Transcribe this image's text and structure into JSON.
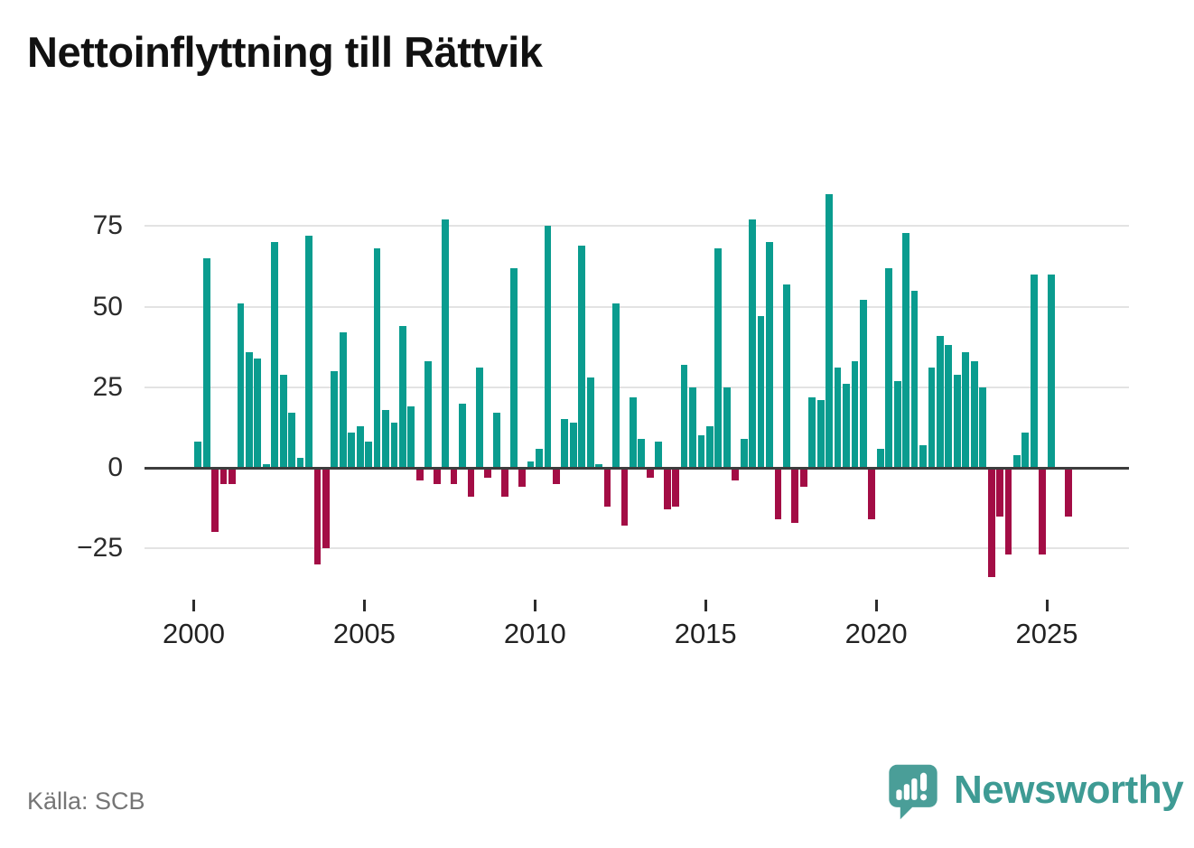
{
  "chart_data": {
    "type": "bar",
    "title": "Nettoinflyttning till Rättvik",
    "source": "Källa: SCB",
    "frequency": "quarterly",
    "x_start_year": 2000,
    "ylim": [
      -40,
      90
    ],
    "yticks": [
      75,
      50,
      25,
      0,
      -25
    ],
    "xticks": [
      2000,
      2005,
      2010,
      2015,
      2020,
      2025
    ],
    "grid": "horizontal",
    "legend": "none",
    "positive_color": "#0a9c8f",
    "negative_color": "#a30d45",
    "series": [
      {
        "year": 2000,
        "values": [
          8,
          65,
          -20,
          -5
        ]
      },
      {
        "year": 2001,
        "values": [
          -5,
          51,
          36,
          34
        ]
      },
      {
        "year": 2002,
        "values": [
          1,
          70,
          29,
          17
        ]
      },
      {
        "year": 2003,
        "values": [
          3,
          72,
          -30,
          -25
        ]
      },
      {
        "year": 2004,
        "values": [
          30,
          42,
          11,
          13
        ]
      },
      {
        "year": 2005,
        "values": [
          8,
          68,
          18,
          14
        ]
      },
      {
        "year": 2006,
        "values": [
          44,
          19,
          -4,
          33
        ]
      },
      {
        "year": 2007,
        "values": [
          -5,
          77,
          -5,
          20
        ]
      },
      {
        "year": 2008,
        "values": [
          -9,
          31,
          -3,
          17
        ]
      },
      {
        "year": 2009,
        "values": [
          -9,
          62,
          -6,
          2
        ]
      },
      {
        "year": 2010,
        "values": [
          6,
          75,
          -5,
          15
        ]
      },
      {
        "year": 2011,
        "values": [
          14,
          69,
          28,
          1
        ]
      },
      {
        "year": 2012,
        "values": [
          -12,
          51,
          -18,
          22
        ]
      },
      {
        "year": 2013,
        "values": [
          9,
          -3,
          8,
          -13
        ]
      },
      {
        "year": 2014,
        "values": [
          -12,
          32,
          25,
          10
        ]
      },
      {
        "year": 2015,
        "values": [
          13,
          68,
          25,
          -4
        ]
      },
      {
        "year": 2016,
        "values": [
          9,
          77,
          47,
          70
        ]
      },
      {
        "year": 2017,
        "values": [
          -16,
          57,
          -17,
          -6
        ]
      },
      {
        "year": 2018,
        "values": [
          22,
          21,
          85,
          31
        ]
      },
      {
        "year": 2019,
        "values": [
          26,
          33,
          52,
          -16
        ]
      },
      {
        "year": 2020,
        "values": [
          6,
          62,
          27,
          73
        ]
      },
      {
        "year": 2021,
        "values": [
          55,
          7,
          31,
          41
        ]
      },
      {
        "year": 2022,
        "values": [
          38,
          29,
          36,
          33
        ]
      },
      {
        "year": 2023,
        "values": [
          25,
          -34,
          -15,
          -27
        ]
      },
      {
        "year": 2024,
        "values": [
          4,
          11,
          60,
          -27
        ]
      },
      {
        "year": 2025,
        "values": [
          60,
          0,
          -15
        ]
      }
    ]
  },
  "branding": {
    "logo_text": "Newsworthy",
    "logo_color": "#4a9e98",
    "logo_icon": "speech-bubble-with-bar-chart-and-exclamation"
  },
  "layout_colors": {
    "title": "#111111",
    "axis_text": "#222222",
    "gridline": "#e3e3e3",
    "zero_line": "#3d3d3d",
    "source_text": "#757575"
  }
}
